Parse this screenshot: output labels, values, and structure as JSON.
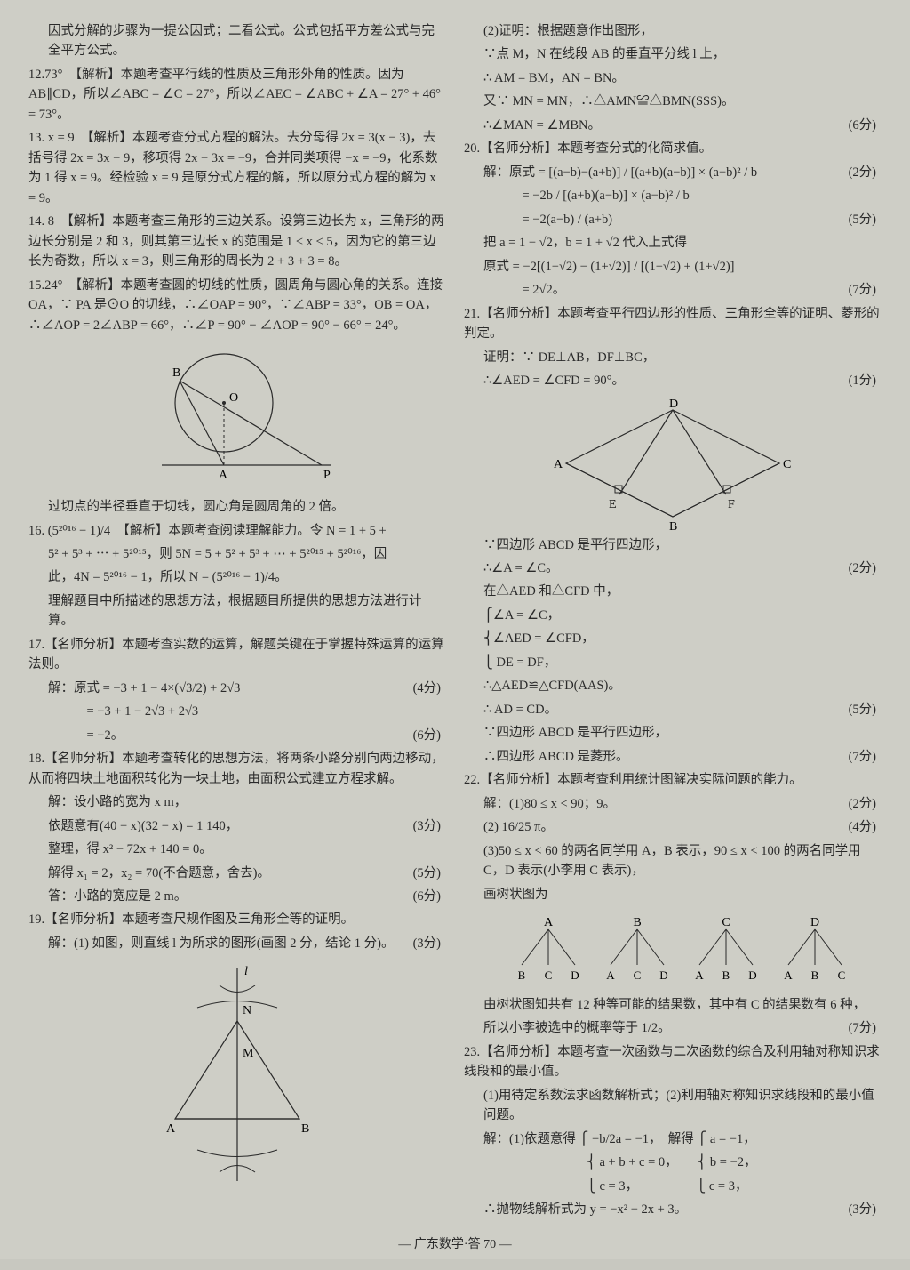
{
  "col1": {
    "intro": "因式分解的步骤为一提公因式；二看公式。公式包括平方差公式与完全平方公式。",
    "p12": "12.73°　【解析】本题考查平行线的性质及三角形外角的性质。因为 AB∥CD，所以∠ABC = ∠C = 27°，所以∠AEC = ∠ABC + ∠A = 27° + 46° = 73°。",
    "p13": "13. x = 9　【解析】本题考查分式方程的解法。去分母得 2x = 3(x − 3)，去括号得 2x = 3x − 9，移项得 2x − 3x = −9，合并同类项得 −x = −9，化系数为 1 得 x = 9。经检验 x = 9 是原分式方程的解，所以原分式方程的解为 x = 9。",
    "p14": "14. 8　【解析】本题考查三角形的三边关系。设第三边长为 x，三角形的两边长分别是 2 和 3，则其第三边长 x 的范围是 1 < x < 5，因为它的第三边长为奇数，所以 x = 3，则三角形的周长为 2 + 3 + 3 = 8。",
    "p15a": "15.24°　【解析】本题考查圆的切线的性质，圆周角与圆心角的关系。连接 OA，∵ PA 是⊙O 的切线，∴∠OAP = 90°，∵∠ABP = 33°，OB = OA，∴∠AOP = 2∠ABP = 66°，∴∠P = 90° − ∠AOP = 90° − 66° = 24°。",
    "p15b": "过切点的半径垂直于切线，圆心角是圆周角的 2 倍。",
    "p16a": "16. (5²⁰¹⁶ − 1)/4　【解析】本题考查阅读理解能力。令 N = 1 + 5 +",
    "p16b": "5² + 5³ + ⋯ + 5²⁰¹⁵，则 5N = 5 + 5² + 5³ + ⋯ + 5²⁰¹⁵ + 5²⁰¹⁶，因",
    "p16c": "此，4N = 5²⁰¹⁶ − 1，所以 N = (5²⁰¹⁶ − 1)/4。",
    "p16d": "理解题目中所描述的思想方法，根据题目所提供的思想方法进行计算。",
    "p17a": "17.【名师分析】本题考查实数的运算，解题关键在于掌握特殊运算的运算法则。",
    "p17b": "解：原式 = −3 + 1 − 4×(√3/2) + 2√3",
    "p17b_score": "(4分)",
    "p17c": "　　　= −3 + 1 − 2√3 + 2√3",
    "p17d": "　　　= −2。",
    "p17d_score": "(6分)",
    "p18a": "18.【名师分析】本题考查转化的思想方法，将两条小路分别向两边移动，从而将四块土地面积转化为一块土地，由面积公式建立方程求解。",
    "p18b": "解：设小路的宽为 x m，",
    "p18c": "依题意有(40 − x)(32 − x) = 1 140，",
    "p18c_score": "(3分)",
    "p18d": "整理，得 x² − 72x + 140 = 0。",
    "p18e": "解得 x₁ = 2，x₂ = 70(不合题意，舍去)。",
    "p18e_score": "(5分)",
    "p18f": "答：小路的宽应是 2 m。",
    "p18f_score": "(6分)",
    "p19a": "19.【名师分析】本题考查尺规作图及三角形全等的证明。",
    "p19b": "解：(1) 如图，则直线 l 为所求的图形(画图 2 分，结论 1 分)。",
    "p19b_score": "(3分)"
  },
  "col2": {
    "p19c": "(2)证明：根据题意作出图形，",
    "p19d": "∵点 M，N 在线段 AB 的垂直平分线 l 上，",
    "p19e": "∴ AM = BM，AN = BN。",
    "p19f": "又∵ MN = MN，∴△AMN≌△BMN(SSS)。",
    "p19g": "∴∠MAN = ∠MBN。",
    "p19g_score": "(6分)",
    "p20a": "20.【名师分析】本题考查分式的化简求值。",
    "p20b": "解：原式 = [(a−b)−(a+b)] / [(a+b)(a−b)] × (a−b)² / b",
    "p20b_score": "(2分)",
    "p20c": "　　　= −2b / [(a+b)(a−b)] × (a−b)² / b",
    "p20d": "　　　= −2(a−b) / (a+b)",
    "p20d_score": "(5分)",
    "p20e": "把 a = 1 − √2，b = 1 + √2 代入上式得",
    "p20f": "原式 = −2[(1−√2) − (1+√2)] / [(1−√2) + (1+√2)]",
    "p20g": "　　　= 2√2。",
    "p20g_score": "(7分)",
    "p21a": "21.【名师分析】本题考查平行四边形的性质、三角形全等的证明、菱形的判定。",
    "p21b": "证明：∵ DE⊥AB，DF⊥BC，",
    "p21c": "∴∠AED = ∠CFD = 90°。",
    "p21c_score": "(1分)",
    "p21d": "∵四边形 ABCD 是平行四边形，",
    "p21e": "∴∠A = ∠C。",
    "p21e_score": "(2分)",
    "p21f": "在△AED 和△CFD 中，",
    "p21g": "⎧∠A = ∠C，",
    "p21h": "⎨∠AED = ∠CFD，",
    "p21i": "⎩ DE = DF，",
    "p21j": "∴△AED≌△CFD(AAS)。",
    "p21k": "∴ AD = CD。",
    "p21k_score": "(5分)",
    "p21l": "∵四边形 ABCD 是平行四边形，",
    "p21m": "∴四边形 ABCD 是菱形。",
    "p21m_score": "(7分)",
    "p22a": "22.【名师分析】本题考查利用统计图解决实际问题的能力。",
    "p22b": "解：(1)80 ≤ x < 90；9。",
    "p22b_score": "(2分)",
    "p22c": "(2) 16/25 π。",
    "p22c_score": "(4分)",
    "p22d": "(3)50 ≤ x < 60 的两名同学用 A，B 表示，90 ≤ x < 100 的两名同学用 C，D 表示(小李用 C 表示)，",
    "p22e": "画树状图为",
    "p22f": "由树状图知共有 12 种等可能的结果数，其中有 C 的结果数有 6 种，",
    "p22g": "所以小李被选中的概率等于 1/2。",
    "p22g_score": "(7分)",
    "p23a": "23.【名师分析】本题考查一次函数与二次函数的综合及利用轴对称知识求线段和的最小值。",
    "p23b": "(1)用待定系数法求函数解析式；(2)利用轴对称知识求线段和的最小值问题。",
    "p23c": "解：(1)依题意得 ⎧ −b/2a = −1，　解得 ⎧ a = −1，",
    "p23c2": "　　　　　　　　⎨ a + b + c = 0，　　⎨ b = −2，",
    "p23c3": "　　　　　　　　⎩ c = 3，　　　　　⎩ c = 3，",
    "p23d": "∴抛物线解析式为 y = −x² − 2x + 3。",
    "p23d_score": "(3分)"
  },
  "footer": "— 广东数学·答 70 —",
  "diagrams": {
    "circle": {
      "labelB": "B",
      "labelO": "O",
      "labelA": "A",
      "labelP": "P"
    },
    "triangle": {
      "labelA": "A",
      "labelB": "B",
      "labelM": "M",
      "labelN": "N",
      "labelL": "l"
    },
    "rhombus": {
      "labelA": "A",
      "labelB": "B",
      "labelC": "C",
      "labelD": "D",
      "labelE": "E",
      "labelF": "F"
    },
    "tree": {
      "roots": [
        "A",
        "B",
        "C",
        "D"
      ],
      "leaves": [
        [
          "B",
          "C",
          "D"
        ],
        [
          "A",
          "C",
          "D"
        ],
        [
          "A",
          "B",
          "D"
        ],
        [
          "A",
          "B",
          "C"
        ]
      ]
    }
  }
}
